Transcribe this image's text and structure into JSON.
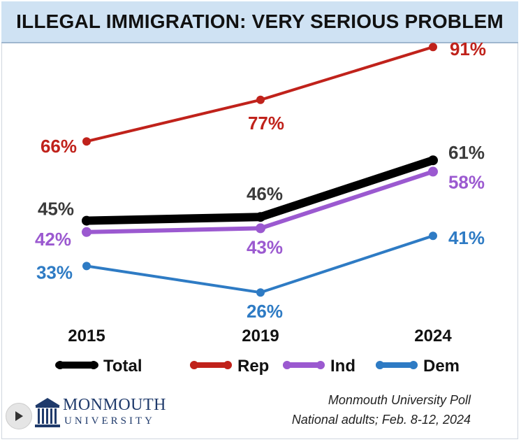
{
  "title": "ILLEGAL IMMIGRATION: VERY SERIOUS PROBLEM",
  "source_line1": "Monmouth University Poll",
  "source_line2": "National adults; Feb. 8-12, 2024",
  "logo": {
    "top": "MONMOUTH",
    "bottom": "UNIVERSITY"
  },
  "chart_data": {
    "type": "line",
    "title": "ILLEGAL IMMIGRATION: VERY SERIOUS PROBLEM",
    "xlabel": "",
    "ylabel": "",
    "categories": [
      "2015",
      "2019",
      "2024"
    ],
    "ylim": [
      20,
      95
    ],
    "grid": false,
    "legend": "bottom",
    "series": [
      {
        "name": "Total",
        "values": [
          45,
          46,
          61
        ],
        "labels": [
          "45%",
          "46%",
          "61%"
        ],
        "color": "#000000"
      },
      {
        "name": "Rep",
        "values": [
          66,
          77,
          91
        ],
        "labels": [
          "66%",
          "77%",
          "91%"
        ],
        "color": "#c0221b"
      },
      {
        "name": "Ind",
        "values": [
          42,
          43,
          58
        ],
        "labels": [
          "42%",
          "43%",
          "58%"
        ],
        "color": "#9b59d0"
      },
      {
        "name": "Dem",
        "values": [
          33,
          26,
          41
        ],
        "labels": [
          "33%",
          "26%",
          "41%"
        ],
        "color": "#2e7bc4"
      }
    ]
  }
}
